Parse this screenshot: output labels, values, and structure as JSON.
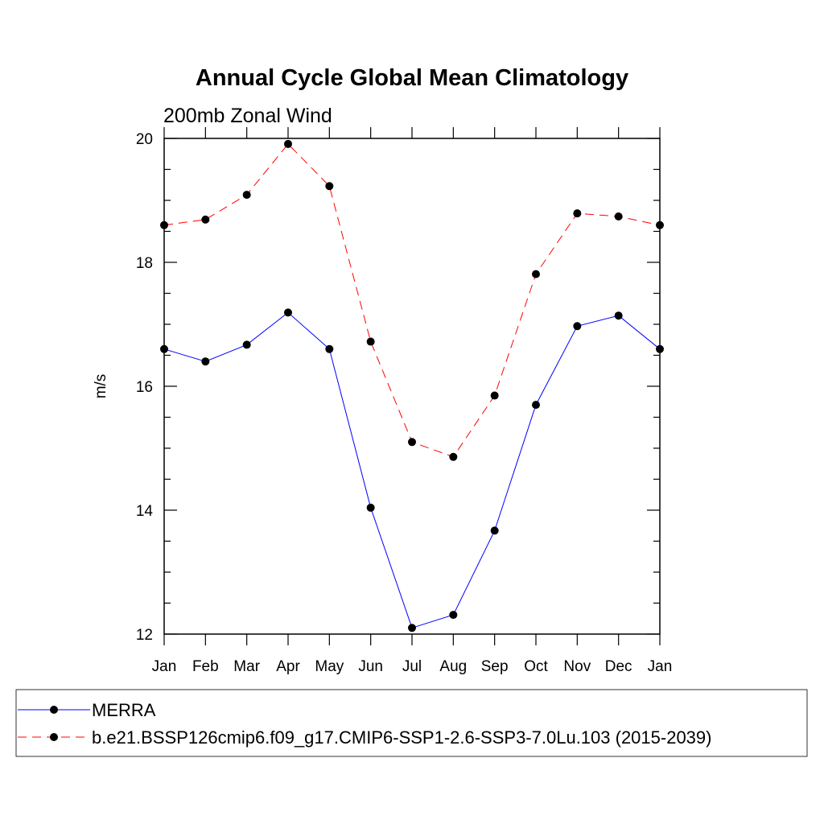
{
  "chart_data": {
    "type": "line",
    "title": "Annual Cycle Global Mean Climatology",
    "subtitle": "200mb Zonal Wind",
    "xlabel": "",
    "ylabel": "m/s",
    "categories": [
      "Jan",
      "Feb",
      "Mar",
      "Apr",
      "May",
      "Jun",
      "Jul",
      "Aug",
      "Sep",
      "Oct",
      "Nov",
      "Dec",
      "Jan"
    ],
    "ylim": [
      12,
      20
    ],
    "yticks": [
      12,
      14,
      16,
      18,
      20
    ],
    "ytick_labels": [
      "12",
      "14",
      "16",
      "18",
      "20"
    ],
    "grid": false,
    "legend_position": "bottom",
    "series": [
      {
        "name": "MERRA",
        "color": "#0000ff",
        "line_style": "solid",
        "marker": "filled-circle",
        "values": [
          16.6,
          16.4,
          16.67,
          17.19,
          16.6,
          14.04,
          12.1,
          12.31,
          13.67,
          15.7,
          16.97,
          17.14,
          16.6
        ]
      },
      {
        "name": "b.e21.BSSP126cmip6.f09_g17.CMIP6-SSP1-2.6-SSP3-7.0Lu.103 (2015-2039)",
        "color": "#ff0000",
        "line_style": "dashed",
        "marker": "filled-circle",
        "values": [
          18.6,
          18.69,
          19.09,
          19.91,
          19.23,
          16.72,
          15.1,
          14.86,
          15.85,
          17.81,
          18.79,
          18.74,
          18.6
        ]
      }
    ]
  }
}
